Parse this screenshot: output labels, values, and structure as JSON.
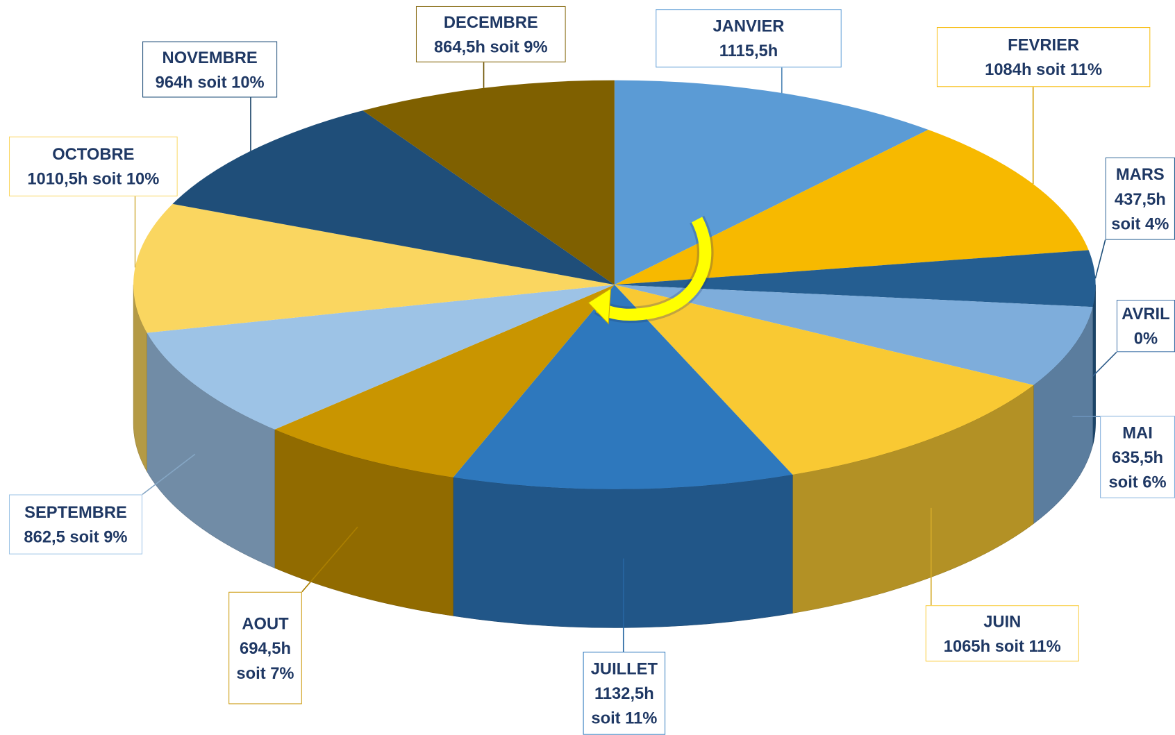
{
  "chart_data": {
    "type": "pie",
    "categories": [
      "JANVIER",
      "FEVRIER",
      "MARS",
      "AVRIL",
      "MAI",
      "JUIN",
      "JUILLET",
      "AOUT",
      "SEPTEMBRE",
      "OCTOBRE",
      "NOVEMBRE",
      "DECEMBRE"
    ],
    "values": [
      1115.5,
      1084,
      437.5,
      0,
      635.5,
      1065,
      1132.5,
      694.5,
      862.5,
      1010.5,
      964,
      864.5
    ],
    "value_labels": [
      "1115,5h",
      "1084h soit 11%",
      "437,5h soit 4%",
      "0%",
      "635,5h soit 6%",
      "1065h soit 11%",
      "1132,5h soit 11%",
      "694,5h soit 7%",
      "862,5 soit 9%",
      "1010,5h soit 10%",
      "964h soit 10%",
      "864,5h soit 9%"
    ],
    "colors": [
      "#5b9bd5",
      "#f7b900",
      "#255e91",
      "#3a6ea5",
      "#7eaddb",
      "#f9c933",
      "#2e78bd",
      "#c99500",
      "#9dc3e6",
      "#fad660",
      "#1f4e79",
      "#7f6000"
    ]
  }
}
